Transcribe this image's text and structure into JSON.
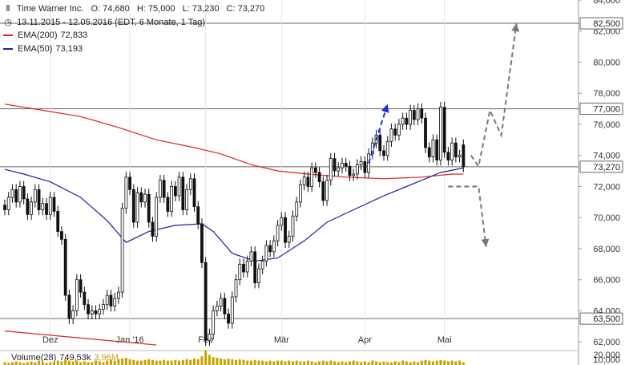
{
  "header": {
    "symbol_name": "Time Warner Inc.",
    "open": "O: 74,680",
    "high": "H: 75,000",
    "low": "L: 73,230",
    "close": "C: 73,270",
    "range": "13.11.2015 - 12.05.2016 (EDT, 6 Monate, 1 Tag)"
  },
  "legend": {
    "ema200_label": "EMA(200)",
    "ema200_value": "72,833",
    "ema50_label": "EMA(50)",
    "ema50_value": "73,193"
  },
  "volume": {
    "label": "Volume(28)",
    "value": "749,53k",
    "value2": "3,96M"
  },
  "colors": {
    "ema200": "#dd2222",
    "ema50": "#22229a",
    "candles": "#111111",
    "blue_arrow": "#1133dd",
    "gray_arrow": "#777777",
    "volume": "#c8a000",
    "grid": "#666666"
  },
  "chart_data": {
    "type": "candlestick",
    "y_ticks": [
      "84,000",
      "82,000",
      "80,000",
      "78,000",
      "76,000",
      "74,000",
      "72,000",
      "70,000",
      "68,000",
      "66,000",
      "64,000",
      "62,000"
    ],
    "volume_ticks": [
      "20,000",
      "10,000"
    ],
    "x_ticks": [
      {
        "label": "Dez",
        "index": 12
      },
      {
        "label": "Jan '16",
        "index": 33
      },
      {
        "label": "Feb",
        "index": 53
      },
      {
        "label": "Mär",
        "index": 73
      },
      {
        "label": "Apr",
        "index": 95
      },
      {
        "label": "Mai",
        "index": 116
      }
    ],
    "horizontal_levels": [
      {
        "value": 82.5,
        "label": "82,500"
      },
      {
        "value": 77.0,
        "label": "77,000"
      },
      {
        "value": 73.27,
        "label": "73,270"
      },
      {
        "value": 63.5,
        "label": "63,500"
      }
    ],
    "candles_close": [
      70.5,
      71.3,
      71.8,
      71.0,
      72.0,
      71.2,
      70.2,
      71.0,
      71.8,
      70.5,
      70.9,
      70.2,
      71.3,
      70.4,
      69.1,
      68.6,
      65.0,
      63.5,
      64.0,
      66.0,
      65.2,
      64.4,
      63.8,
      64.0,
      63.8,
      64.1,
      64.4,
      65.0,
      64.3,
      64.8,
      65.2,
      70.6,
      72.6,
      71.8,
      69.7,
      71.6,
      71.0,
      71.5,
      69.7,
      68.8,
      71.3,
      72.4,
      71.3,
      70.4,
      72.0,
      71.4,
      72.6,
      70.5,
      71.8,
      72.5,
      70.7,
      69.6,
      67.1,
      62.1,
      62.5,
      64.0,
      64.3,
      64.8,
      63.8,
      63.2,
      64.9,
      66.0,
      67.0,
      66.5,
      67.2,
      67.8,
      65.8,
      66.7,
      67.2,
      68.2,
      67.8,
      68.5,
      69.5,
      70.0,
      68.4,
      68.8,
      70.1,
      71.0,
      72.1,
      72.6,
      72.0,
      73.2,
      72.9,
      72.3,
      71.1,
      72.4,
      73.8,
      73.0,
      73.2,
      73.5,
      73.3,
      72.7,
      72.8,
      73.4,
      73.6,
      72.9,
      74.1,
      74.8,
      75.3,
      74.3,
      74.0,
      74.9,
      75.7,
      75.3,
      76.0,
      76.4,
      76.0,
      76.9,
      76.3,
      77.0,
      76.4,
      74.5,
      73.9,
      75.0,
      73.7,
      77.1,
      74.2,
      73.7,
      74.8,
      73.9,
      74.0,
      73.27
    ],
    "candles_open": [
      70.8,
      70.5,
      71.3,
      71.8,
      71.0,
      72.0,
      71.2,
      70.2,
      71.0,
      71.8,
      70.5,
      70.9,
      70.2,
      71.3,
      70.4,
      69.1,
      68.6,
      65.0,
      63.5,
      64.0,
      66.0,
      65.2,
      64.4,
      63.8,
      64.0,
      63.8,
      64.1,
      64.4,
      65.0,
      64.3,
      64.8,
      65.2,
      70.6,
      72.6,
      71.8,
      69.7,
      71.6,
      71.0,
      71.5,
      69.7,
      68.8,
      71.3,
      72.4,
      71.3,
      70.4,
      72.0,
      71.4,
      72.6,
      70.5,
      71.8,
      72.5,
      70.7,
      69.6,
      67.1,
      62.1,
      62.5,
      64.0,
      64.3,
      64.8,
      63.8,
      63.2,
      64.9,
      66.0,
      67.0,
      66.5,
      67.2,
      67.8,
      65.8,
      66.7,
      67.2,
      68.2,
      67.8,
      68.5,
      69.5,
      70.0,
      68.4,
      68.8,
      70.1,
      71.0,
      72.1,
      72.6,
      72.0,
      73.2,
      72.9,
      72.3,
      71.1,
      72.4,
      73.8,
      73.0,
      73.2,
      73.5,
      73.3,
      72.7,
      72.8,
      73.4,
      73.6,
      72.9,
      74.1,
      74.8,
      75.3,
      74.3,
      74.0,
      74.9,
      75.7,
      75.3,
      76.0,
      76.4,
      76.0,
      76.9,
      76.3,
      77.0,
      76.4,
      74.5,
      73.9,
      75.0,
      73.7,
      77.1,
      74.2,
      73.7,
      74.8,
      73.9,
      74.68
    ],
    "ema200": [
      [
        0,
        77.3
      ],
      [
        10,
        76.9
      ],
      [
        20,
        76.5
      ],
      [
        30,
        75.8
      ],
      [
        40,
        75.0
      ],
      [
        50,
        74.5
      ],
      [
        57,
        74.1
      ],
      [
        65,
        73.4
      ],
      [
        72,
        73.0
      ],
      [
        80,
        72.8
      ],
      [
        90,
        72.6
      ],
      [
        100,
        72.5
      ],
      [
        110,
        72.6
      ],
      [
        118,
        72.8
      ],
      [
        121,
        72.8
      ]
    ],
    "ema50": [
      [
        0,
        73.1
      ],
      [
        5,
        72.8
      ],
      [
        12,
        72.3
      ],
      [
        20,
        71.3
      ],
      [
        27,
        69.8
      ],
      [
        32,
        68.4
      ],
      [
        38,
        69.1
      ],
      [
        45,
        69.5
      ],
      [
        52,
        69.6
      ],
      [
        55,
        69.1
      ],
      [
        60,
        67.7
      ],
      [
        66,
        67.2
      ],
      [
        72,
        67.4
      ],
      [
        79,
        68.5
      ],
      [
        85,
        69.7
      ],
      [
        92,
        70.5
      ],
      [
        100,
        71.4
      ],
      [
        108,
        72.2
      ],
      [
        115,
        72.9
      ],
      [
        121,
        73.19
      ]
    ],
    "trend_line": [
      [
        0,
        62.7
      ],
      [
        40,
        61.8
      ]
    ],
    "blue_arrow": [
      [
        96,
        73.5
      ],
      [
        101,
        77.3
      ]
    ],
    "gray_arrow_up": [
      [
        123,
        74.0
      ],
      [
        125,
        73.3
      ],
      [
        128,
        76.9
      ],
      [
        131,
        75.3
      ],
      [
        135,
        82.5
      ]
    ],
    "gray_arrow_down": [
      [
        117,
        72.0
      ],
      [
        125,
        72.0
      ],
      [
        127,
        68.1
      ]
    ],
    "volume": [
      0.2,
      0.15,
      0.2,
      0.25,
      0.2,
      0.15,
      0.2,
      0.25,
      0.2,
      0.3,
      0.2,
      0.15,
      0.2,
      0.2,
      0.3,
      0.25,
      0.4,
      0.3,
      0.25,
      0.3,
      0.2,
      0.25,
      0.2,
      0.2,
      0.3,
      0.25,
      0.2,
      0.3,
      0.35,
      0.3,
      0.4,
      0.45,
      0.5,
      0.4,
      0.35,
      0.3,
      0.3,
      0.35,
      0.4,
      0.35,
      0.3,
      0.3,
      0.35,
      0.3,
      0.3,
      0.35,
      0.3,
      0.35,
      0.4,
      0.35,
      0.45,
      0.4,
      0.6,
      1.0,
      0.7,
      0.55,
      0.5,
      0.45,
      0.4,
      0.45,
      0.4,
      0.35,
      0.4,
      0.35,
      0.3,
      0.3,
      0.35,
      0.3,
      0.3,
      0.25,
      0.3,
      0.25,
      0.3,
      0.3,
      0.25,
      0.3,
      0.25,
      0.3,
      0.25,
      0.25,
      0.3,
      0.25,
      0.2,
      0.25,
      0.3,
      0.25,
      0.3,
      0.25,
      0.2,
      0.25,
      0.2,
      0.25,
      0.3,
      0.25,
      0.2,
      0.25,
      0.2,
      0.3,
      0.25,
      0.2,
      0.25,
      0.2,
      0.2,
      0.25,
      0.2,
      0.3,
      0.25,
      0.2,
      0.25,
      0.2,
      0.3,
      0.35,
      0.3,
      0.25,
      0.3,
      0.35,
      0.3,
      0.25,
      0.3,
      0.25,
      0.3,
      0.2
    ]
  }
}
